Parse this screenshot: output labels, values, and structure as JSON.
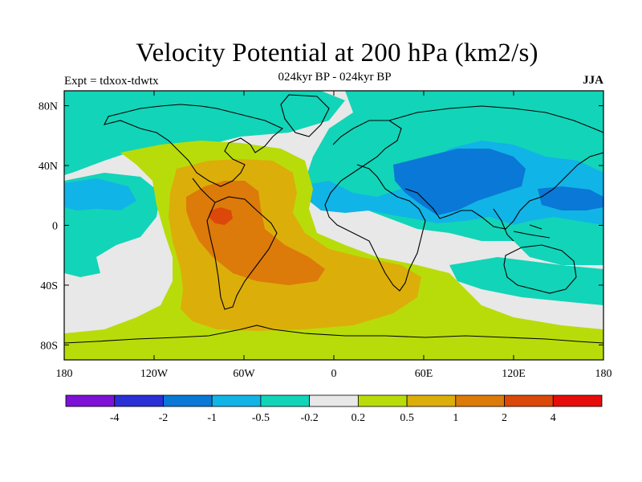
{
  "chart_data": {
    "type": "heatmap",
    "title": "Velocity Potential at 200 hPa (km2/s)",
    "subtitle": "024kyr BP - 024kyr BP",
    "left_annotation": "Expt = tdxox-tdwtx",
    "right_annotation": "JJA",
    "x_axis": {
      "range": [
        -180,
        180
      ],
      "ticks": [
        -180,
        -120,
        -60,
        0,
        60,
        120,
        180
      ],
      "tick_labels": [
        "180",
        "120W",
        "60W",
        "0",
        "60E",
        "120E",
        "180"
      ]
    },
    "y_axis": {
      "range": [
        -90,
        90
      ],
      "ticks": [
        80,
        40,
        0,
        -40,
        -80
      ],
      "tick_labels": [
        "80N",
        "40N",
        "0",
        "40S",
        "80S"
      ]
    },
    "colorbar": {
      "levels": [
        "-4",
        "-2",
        "-1",
        "-0.5",
        "-0.2",
        "0.2",
        "0.5",
        "1",
        "2",
        "4"
      ],
      "colors": [
        "#7d12d6",
        "#2a2fd6",
        "#0a78d6",
        "#11b4e6",
        "#12d4b8",
        "#e8e8e8",
        "#b8dc0a",
        "#dcae0a",
        "#dc7a0a",
        "#dc470a",
        "#e60c0c"
      ]
    },
    "features": [
      {
        "name": "positive center over Amazon / tropical Atlantic",
        "lon": -75,
        "lat": 5,
        "value": 3
      },
      {
        "name": "negative center over South/East Asia",
        "lon": 85,
        "lat": 35,
        "value": -1.2
      },
      {
        "name": "negative center over western Pacific",
        "lon": 140,
        "lat": 15,
        "value": -1.1
      }
    ]
  }
}
